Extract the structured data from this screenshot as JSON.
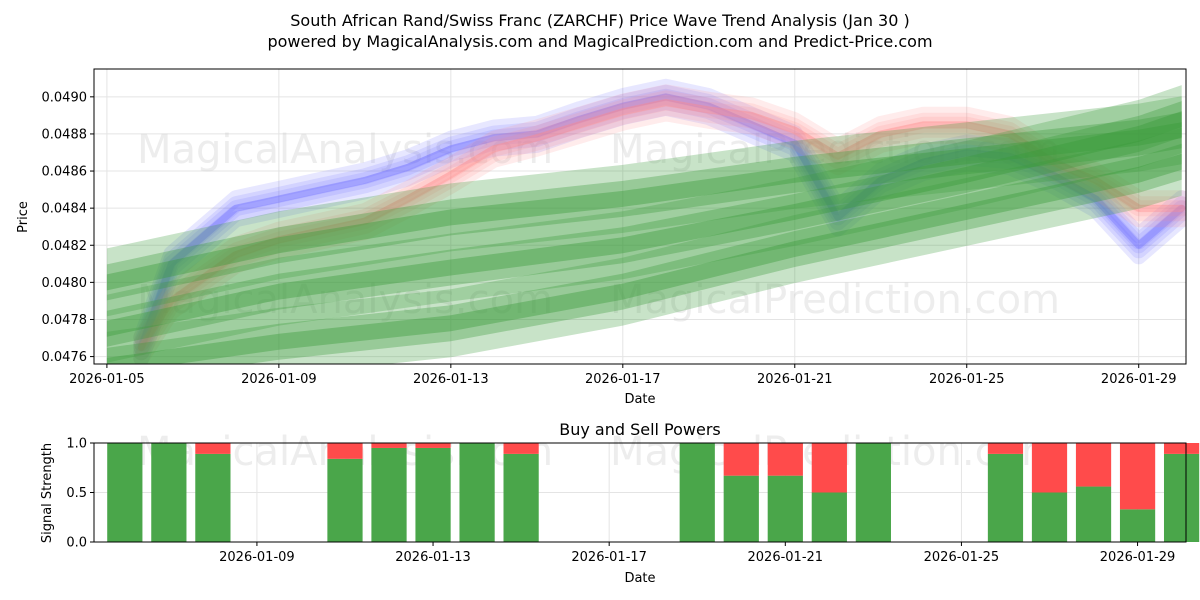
{
  "title_line1": "South African Rand/Swiss Franc (ZARCHF) Price Wave Trend Analysis (Jan 30 )",
  "title_line2": "powered by MagicalAnalysis.com and MagicalPrediction.com and Predict-Price.com",
  "watermarks": [
    "MagicalAnalysis.com",
    "MagicalPrediction.com"
  ],
  "colors": {
    "blue": "#6b6bff",
    "red": "#ff8a8a",
    "green": "#3a9a3a",
    "buy": "#4aa64a",
    "sell": "#ff4b4b",
    "grid": "#e4e4e4"
  },
  "chart_data": [
    {
      "type": "line",
      "title": "",
      "xlabel": "Date",
      "ylabel": "Price",
      "xlim": [
        -0.3,
        25.1
      ],
      "ylim": [
        0.04756,
        0.04915
      ],
      "x_ticks": [
        {
          "day": 0,
          "label": "2026-01-05"
        },
        {
          "day": 4,
          "label": "2026-01-09"
        },
        {
          "day": 8,
          "label": "2026-01-13"
        },
        {
          "day": 12,
          "label": "2026-01-17"
        },
        {
          "day": 16,
          "label": "2026-01-21"
        },
        {
          "day": 20,
          "label": "2026-01-25"
        },
        {
          "day": 24,
          "label": "2026-01-29"
        }
      ],
      "y_ticks": [
        "0.0476",
        "0.0478",
        "0.0480",
        "0.0482",
        "0.0484",
        "0.0486",
        "0.0488",
        "0.0490"
      ],
      "series": [
        {
          "name": "blue wave",
          "color": "#6b6bff",
          "x": [
            0.8,
            1.5,
            3,
            4,
            5,
            6,
            7,
            8,
            9,
            10,
            11,
            12,
            13,
            14,
            15,
            16,
            17,
            18,
            19,
            20,
            21,
            22,
            23,
            24,
            25
          ],
          "y": [
            0.04765,
            0.0481,
            0.0484,
            0.04845,
            0.0485,
            0.04855,
            0.04862,
            0.04872,
            0.04878,
            0.0488,
            0.04888,
            0.04895,
            0.049,
            0.04895,
            0.04885,
            0.04875,
            0.04835,
            0.04855,
            0.04865,
            0.0487,
            0.04868,
            0.04858,
            0.04845,
            0.0482,
            0.0484
          ]
        },
        {
          "name": "red wave",
          "color": "#ff8a8a",
          "x": [
            0.8,
            1.5,
            3,
            4,
            5,
            6,
            7,
            8,
            9,
            10,
            11,
            12,
            13,
            14,
            15,
            16,
            17,
            18,
            19,
            20,
            21,
            22,
            23,
            24,
            25
          ],
          "y": [
            0.04765,
            0.0479,
            0.04815,
            0.04823,
            0.04828,
            0.04833,
            0.04845,
            0.04858,
            0.04872,
            0.04878,
            0.04885,
            0.04892,
            0.04897,
            0.04893,
            0.0489,
            0.04882,
            0.04868,
            0.0488,
            0.04885,
            0.04885,
            0.0488,
            0.04865,
            0.04855,
            0.0484,
            0.0484
          ]
        },
        {
          "name": "green trend 1",
          "color": "#3a9a3a",
          "x": [
            0,
            4,
            8,
            12,
            16,
            20,
            24,
            25
          ],
          "y": [
            0.048,
            0.0482,
            0.04835,
            0.04845,
            0.04858,
            0.04868,
            0.04878,
            0.04882
          ]
        },
        {
          "name": "green trend 2",
          "color": "#3a9a3a",
          "x": [
            0,
            4,
            8,
            12,
            16,
            20,
            24,
            25
          ],
          "y": [
            0.04775,
            0.04795,
            0.04808,
            0.0482,
            0.04838,
            0.04858,
            0.0488,
            0.04888
          ]
        },
        {
          "name": "green trend 3",
          "color": "#3a9a3a",
          "x": [
            0,
            4,
            8,
            12,
            16,
            20,
            24,
            25
          ],
          "y": [
            0.04755,
            0.04768,
            0.04778,
            0.04795,
            0.04818,
            0.04838,
            0.04858,
            0.04865
          ]
        }
      ]
    },
    {
      "type": "bar",
      "title": "Buy and Sell Powers",
      "xlabel": "Date",
      "ylabel": "Signal Strength",
      "xlim": [
        0.3,
        25.1
      ],
      "ylim": [
        0.0,
        1.0
      ],
      "x_ticks": [
        {
          "day": 4,
          "label": "2026-01-09"
        },
        {
          "day": 8,
          "label": "2026-01-13"
        },
        {
          "day": 12,
          "label": "2026-01-17"
        },
        {
          "day": 16,
          "label": "2026-01-21"
        },
        {
          "day": 20,
          "label": "2026-01-25"
        },
        {
          "day": 24,
          "label": "2026-01-29"
        }
      ],
      "y_ticks": [
        "0.0",
        "0.5",
        "1.0"
      ],
      "bars": [
        {
          "day": 1,
          "buy": 1.0,
          "sell": 0.0
        },
        {
          "day": 2,
          "buy": 1.0,
          "sell": 0.0
        },
        {
          "day": 3,
          "buy": 0.89,
          "sell": 0.11
        },
        {
          "day": 6,
          "buy": 0.84,
          "sell": 0.16
        },
        {
          "day": 7,
          "buy": 0.95,
          "sell": 0.05
        },
        {
          "day": 8,
          "buy": 0.95,
          "sell": 0.05
        },
        {
          "day": 9,
          "buy": 1.0,
          "sell": 0.0
        },
        {
          "day": 10,
          "buy": 0.89,
          "sell": 0.11
        },
        {
          "day": 14,
          "buy": 1.0,
          "sell": 0.0
        },
        {
          "day": 15,
          "buy": 0.67,
          "sell": 0.33
        },
        {
          "day": 16,
          "buy": 0.67,
          "sell": 0.33
        },
        {
          "day": 17,
          "buy": 0.5,
          "sell": 0.5
        },
        {
          "day": 18,
          "buy": 1.0,
          "sell": 0.0
        },
        {
          "day": 21,
          "buy": 0.89,
          "sell": 0.11
        },
        {
          "day": 22,
          "buy": 0.5,
          "sell": 0.5
        },
        {
          "day": 23,
          "buy": 0.56,
          "sell": 0.44
        },
        {
          "day": 24,
          "buy": 0.33,
          "sell": 0.67
        },
        {
          "day": 25,
          "buy": 0.89,
          "sell": 0.11
        }
      ]
    }
  ]
}
